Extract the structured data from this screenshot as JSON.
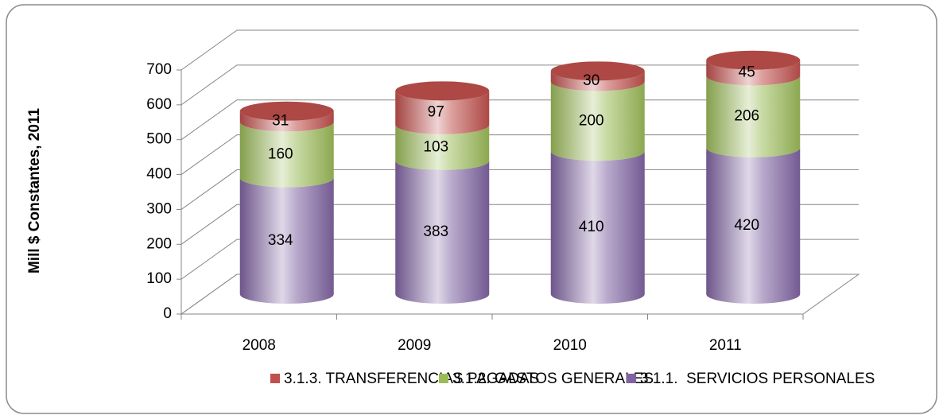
{
  "chart_data": {
    "type": "bar3d-stacked-cylinder",
    "y_axis_label": "Mill $ Constantes, 2011",
    "categories": [
      "2008",
      "2009",
      "2010",
      "2011"
    ],
    "series": [
      {
        "name": "3.1.1.  SERVICIOS PERSONALES",
        "color": "#8064a2",
        "values": [
          334,
          383,
          410,
          420
        ]
      },
      {
        "name": "3.1.2. GASTOS GENERALES",
        "color": "#9bbb59",
        "values": [
          160,
          103,
          200,
          206
        ]
      },
      {
        "name": "3.1.3. TRANSFERENCIAS PAGADAS",
        "color": "#c0504d",
        "values": [
          31,
          97,
          30,
          45
        ]
      }
    ],
    "ylim": [
      0,
      700
    ],
    "yticks": [
      0,
      100,
      200,
      300,
      400,
      500,
      600,
      700
    ],
    "grid": true,
    "legend": "bottom"
  }
}
